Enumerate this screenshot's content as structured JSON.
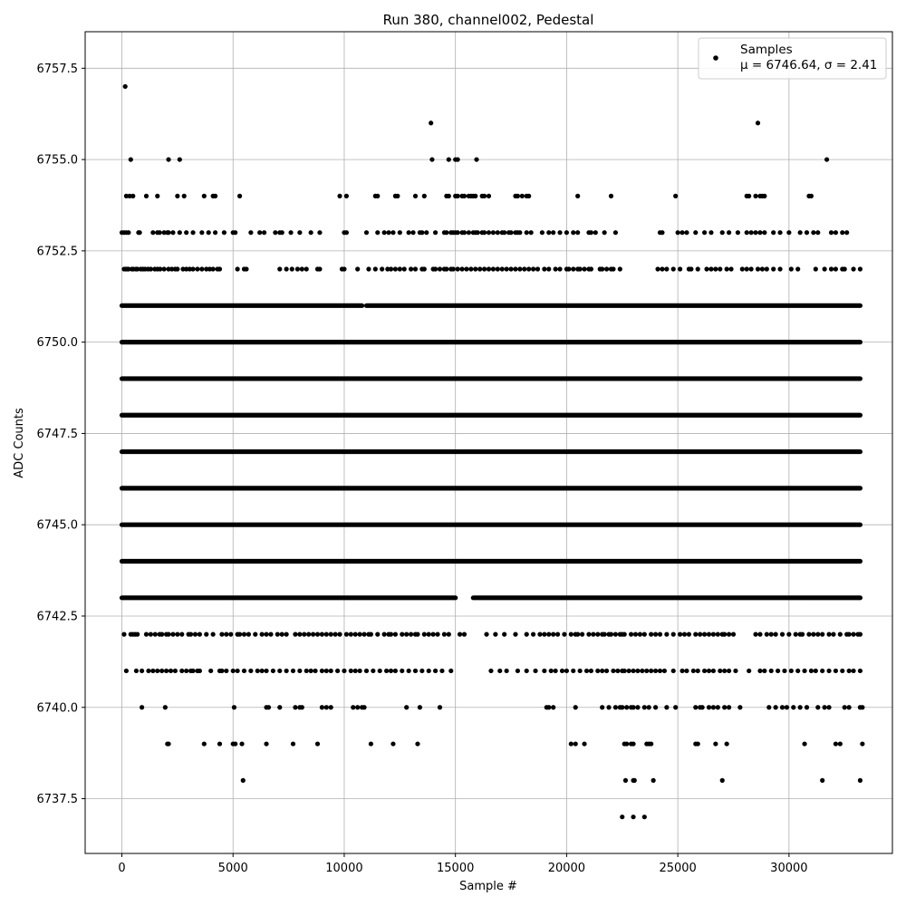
{
  "chart_data": {
    "type": "scatter",
    "title": "Run 380, channel002, Pedestal",
    "xlabel": "Sample #",
    "ylabel": "ADC Counts",
    "xlim": [
      -1650,
      34650
    ],
    "ylim": [
      6736.0,
      6758.5
    ],
    "xticks": [
      0,
      5000,
      10000,
      15000,
      20000,
      25000,
      30000
    ],
    "xtick_labels": [
      "0",
      "5000",
      "10000",
      "15000",
      "20000",
      "25000",
      "30000"
    ],
    "yticks": [
      6737.5,
      6740.0,
      6742.5,
      6745.0,
      6747.5,
      6750.0,
      6752.5,
      6755.0,
      6757.5
    ],
    "ytick_labels": [
      "6737.5",
      "6740.0",
      "6742.5",
      "6745.0",
      "6747.5",
      "6750.0",
      "6752.5",
      "6755.0",
      "6757.5"
    ],
    "grid": true,
    "legend_position": "top-right",
    "color": "#000000",
    "series": [
      {
        "name": "Samples",
        "stats_label": "μ = 6746.64, σ = 2.41",
        "n_samples": 33300,
        "dense_levels": [
          {
            "y": 6744,
            "x_range": [
              0,
              33200
            ]
          },
          {
            "y": 6745,
            "x_range": [
              0,
              33200
            ]
          },
          {
            "y": 6746,
            "x_range": [
              0,
              33200
            ]
          },
          {
            "y": 6747,
            "x_range": [
              0,
              33200
            ]
          },
          {
            "y": 6748,
            "x_range": [
              0,
              33200
            ]
          },
          {
            "y": 6749,
            "x_range": [
              0,
              33200
            ]
          },
          {
            "y": 6750,
            "x_range": [
              0,
              33200
            ]
          }
        ],
        "level_segments": [
          {
            "y": 6743,
            "segments": [
              [
                0,
                15000
              ],
              [
                15800,
                33200
              ]
            ]
          },
          {
            "y": 6751,
            "segments": [
              [
                0,
                10800
              ],
              [
                11000,
                33200
              ]
            ]
          },
          {
            "y": 6752,
            "x": [
              100,
              180,
              250,
              300,
              450,
              520,
              640,
              700,
              850,
              950,
              1050,
              1180,
              1300,
              1480,
              1600,
              1720,
              1900,
              2100,
              2250,
              2400,
              2500,
              2750,
              2900,
              3050,
              3200,
              3400,
              3600,
              3800,
              3950,
              4100,
              4300,
              4400,
              5200,
              5500,
              5600,
              7100,
              7400,
              7650,
              7900,
              8100,
              8300,
              8800,
              8900,
              9900,
              10000,
              10600,
              11100,
              11400,
              11700,
              11950,
              12100,
              12300,
              12500,
              12700,
              13000,
              13200,
              13500,
              13600,
              14000,
              14100,
              14300,
              14500,
              14600,
              14800,
              14900,
              15100,
              15300,
              15500,
              15700,
              15900,
              16100,
              16300,
              16500,
              16700,
              16900,
              17100,
              17300,
              17500,
              17700,
              17900,
              18100,
              18300,
              18500,
              18700,
              19000,
              19200,
              19500,
              19700,
              20000,
              20100,
              20300,
              20500,
              20600,
              20800,
              21000,
              21100,
              21500,
              21600,
              21800,
              22000,
              22100,
              22400,
              24100,
              24300,
              24500,
              24800,
              25100,
              25500,
              25600,
              25900,
              26300,
              26500,
              26700,
              26900,
              27200,
              27400,
              27900,
              28100,
              28300,
              28600,
              28800,
              29000,
              29300,
              29600,
              30100,
              30400,
              31200,
              31600,
              31900,
              32100,
              32400,
              32500,
              32900,
              33200
            ]
          },
          {
            "y": 6753,
            "x": [
              0,
              100,
              200,
              300,
              750,
              800,
              1400,
              1600,
              1700,
              1900,
              2050,
              2100,
              2300,
              2600,
              2900,
              3200,
              3600,
              3900,
              4200,
              4600,
              5000,
              5100,
              5800,
              6200,
              6400,
              6900,
              7100,
              7200,
              7600,
              8000,
              8500,
              8900,
              10000,
              10100,
              11000,
              11500,
              11800,
              12000,
              12200,
              12500,
              12900,
              13100,
              13400,
              13500,
              13700,
              14100,
              14500,
              14600,
              14800,
              14900,
              15000,
              15100,
              15300,
              15400,
              15600,
              15800,
              15900,
              16000,
              16200,
              16300,
              16500,
              16700,
              16900,
              17100,
              17200,
              17400,
              17500,
              17700,
              17800,
              17900,
              18200,
              18400,
              18900,
              19200,
              19400,
              19700,
              20000,
              20300,
              20500,
              21000,
              21100,
              21300,
              21700,
              22200,
              24200,
              24300,
              25000,
              25200,
              25400,
              25800,
              26200,
              26500,
              27000,
              27300,
              27700,
              28100,
              28300,
              28500,
              28700,
              28900,
              29300,
              29600,
              30000,
              30500,
              30800,
              31100,
              31300,
              31900,
              32100,
              32400,
              32600
            ]
          },
          {
            "y": 6742,
            "x": [
              100,
              400,
              500,
              600,
              700,
              1100,
              1300,
              1500,
              1700,
              1800,
              2000,
              2100,
              2300,
              2500,
              2700,
              3000,
              3100,
              3300,
              3500,
              3800,
              4100,
              4500,
              4700,
              4900,
              5200,
              5300,
              5500,
              5700,
              6000,
              6300,
              6500,
              6700,
              7000,
              7200,
              7400,
              7800,
              8000,
              8200,
              8400,
              8600,
              8800,
              9000,
              9200,
              9400,
              9600,
              9800,
              10100,
              10300,
              10500,
              10700,
              10900,
              11100,
              11200,
              11500,
              11800,
              12000,
              12100,
              12300,
              12600,
              12800,
              13000,
              13200,
              13300,
              13600,
              13800,
              14000,
              14200,
              14500,
              14700,
              15200,
              15400,
              16400,
              16800,
              17200,
              17700,
              18200,
              18500,
              18800,
              19000,
              19200,
              19400,
              19600,
              19900,
              20200,
              20400,
              20500,
              20700,
              21000,
              21200,
              21400,
              21600,
              21700,
              21900,
              22000,
              22200,
              22400,
              22500,
              22600,
              22900,
              23100,
              23300,
              23500,
              23800,
              24000,
              24200,
              24500,
              24800,
              25100,
              25300,
              25500,
              25800,
              26000,
              26200,
              26400,
              26600,
              26800,
              27000,
              27100,
              27300,
              27500,
              28500,
              28700,
              29000,
              29200,
              29400,
              29700,
              30000,
              30300,
              30500,
              30600,
              30900,
              31100,
              31300,
              31500,
              31800,
              32000,
              32300,
              32600,
              32700,
              32900,
              33100,
              33200
            ]
          },
          {
            "y": 6741,
            "x": [
              200,
              650,
              900,
              1200,
              1400,
              1600,
              1800,
              2000,
              2200,
              2400,
              2700,
              2900,
              3100,
              3200,
              3400,
              3500,
              4000,
              4400,
              4500,
              4700,
              5000,
              5200,
              5500,
              5800,
              6100,
              6300,
              6500,
              6800,
              7100,
              7400,
              7700,
              8000,
              8300,
              8500,
              8700,
              9000,
              9200,
              9400,
              9700,
              10000,
              10300,
              10500,
              10700,
              11000,
              11300,
              11600,
              11900,
              12100,
              12300,
              12600,
              12900,
              13200,
              13500,
              13800,
              14100,
              14400,
              14800,
              16600,
              17000,
              17300,
              17800,
              18200,
              18600,
              19000,
              19300,
              19500,
              19800,
              20000,
              20300,
              20600,
              20900,
              21100,
              21400,
              21600,
              21800,
              22100,
              22300,
              22500,
              22600,
              22800,
              23000,
              23200,
              23400,
              23600,
              23800,
              24000,
              24200,
              24400,
              24800,
              25200,
              25400,
              25700,
              25900,
              26200,
              26400,
              26600,
              26900,
              27100,
              27300,
              27600,
              28200,
              28700,
              28900,
              29200,
              29500,
              29800,
              30100,
              30400,
              30700,
              31000,
              31200,
              31500,
              31800,
              32100,
              32400,
              32700,
              32900,
              33200
            ]
          },
          {
            "y": 6740,
            "x": [
              900,
              1950,
              5050,
              6500,
              6600,
              7100,
              7800,
              8000,
              8100,
              9000,
              9200,
              9400,
              10400,
              10600,
              10800,
              10900,
              12800,
              13400,
              14300,
              19100,
              19200,
              19400,
              20400,
              21600,
              21900,
              22200,
              22400,
              22500,
              22700,
              22900,
              23000,
              23200,
              23500,
              23700,
              24000,
              24500,
              24900,
              25800,
              26000,
              26100,
              26400,
              26600,
              26800,
              27100,
              27300,
              27800,
              29100,
              29400,
              29700,
              29900,
              30200,
              30500,
              30800,
              31300,
              31600,
              31800,
              32500,
              32700,
              33200,
              33300
            ]
          },
          {
            "y": 6739,
            "x": [
              2050,
              2100,
              3700,
              4400,
              5000,
              5100,
              5400,
              6500,
              7700,
              8800,
              11200,
              12200,
              13300,
              20200,
              20400,
              20800,
              22600,
              22700,
              22900,
              23000,
              23600,
              23700,
              23800,
              25800,
              25900,
              26700,
              27200,
              30700,
              32100,
              32300,
              33300
            ]
          },
          {
            "y": 6738,
            "x": [
              5450,
              22650,
              23000,
              23050,
              23900,
              27000,
              31500,
              33200
            ]
          },
          {
            "y": 6737,
            "x": [
              22500,
              23000,
              23500
            ]
          },
          {
            "y": 6754,
            "x": [
              200,
              350,
              500,
              1100,
              1600,
              2500,
              2800,
              3700,
              4100,
              4200,
              5300,
              9800,
              10100,
              11400,
              11500,
              12300,
              12400,
              13200,
              13600,
              14600,
              14700,
              15000,
              15100,
              15300,
              15400,
              15600,
              15700,
              15800,
              15900,
              16200,
              16300,
              16500,
              17700,
              17800,
              18000,
              18200,
              18300,
              20500,
              22000,
              24900,
              28100,
              28200,
              28500,
              28700,
              28800,
              28900,
              30900,
              31000
            ]
          },
          {
            "y": 6755,
            "x": [
              400,
              2100,
              2600,
              13950,
              14700,
              15000,
              15100,
              15950,
              31700
            ]
          },
          {
            "y": 6756,
            "x": [
              13900,
              28600
            ]
          },
          {
            "y": 6757,
            "x": [
              150
            ]
          }
        ]
      }
    ]
  }
}
